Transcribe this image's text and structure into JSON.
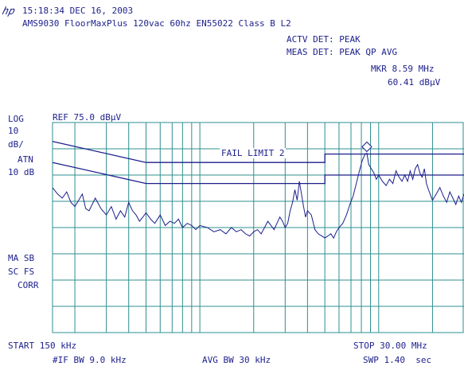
{
  "header": {
    "logo": "hp",
    "timestamp": "15:18:34 DEC 16, 2003",
    "description": "AMS9030 FloorMaxPlus 120vac 60hz EN55022 Class B L2"
  },
  "detectors": {
    "actv_det": "ACTV DET: PEAK",
    "meas_det": "MEAS DET: PEAK QP AVG"
  },
  "marker": {
    "freq": "MKR 8.59 MHz",
    "level": "60.41 dBμV"
  },
  "left_panel": {
    "scale_mode": "LOG",
    "scale_value": "10",
    "scale_unit": "dB/",
    "atn_label": "ATN",
    "atn_value": "10 dB",
    "ma_sb": "MA SB",
    "sc_fs": "SC FS",
    "corr": "CORR"
  },
  "footer": {
    "start": "START 150 kHz",
    "stop": "STOP 30.00 MHz",
    "if_bw": "#IF BW 9.0 kHz",
    "avg_bw": "AVG BW 30 kHz",
    "swp": "SWP 1.40  sec"
  },
  "colors": {
    "text": "#1c1f8c",
    "trace": "#1c1f8c",
    "grid": "#2f8f8f",
    "background": "#ffffff"
  },
  "chart_data": {
    "type": "line",
    "reference_level": "REF 75.0 dBμV",
    "annotation": "FAIL LIMIT 2",
    "ylim": [
      -25,
      75
    ],
    "y_unit": "dBμV",
    "x_start_mhz": 0.15,
    "x_stop_mhz": 30.0,
    "grid": true,
    "marker_point": {
      "x_mhz": 8.59,
      "y": 60.41
    },
    "series": [
      {
        "kind": "limit",
        "x": [
          0.15,
          0.5,
          5.0,
          5.0,
          30.0
        ],
        "values": [
          66.0,
          56.0,
          56.0,
          60.0,
          60.0
        ]
      },
      {
        "kind": "limit",
        "x": [
          0.15,
          0.5,
          5.0,
          5.0,
          30.0
        ],
        "values": [
          56.0,
          46.0,
          46.0,
          50.0,
          50.0
        ]
      },
      {
        "kind": "trace",
        "x": [
          0.15,
          0.16,
          0.17,
          0.18,
          0.19,
          0.2,
          0.21,
          0.22,
          0.23,
          0.24,
          0.25,
          0.26,
          0.28,
          0.3,
          0.32,
          0.34,
          0.36,
          0.38,
          0.4,
          0.42,
          0.44,
          0.46,
          0.48,
          0.5,
          0.53,
          0.56,
          0.6,
          0.64,
          0.68,
          0.72,
          0.76,
          0.8,
          0.85,
          0.9,
          0.95,
          1.0,
          1.1,
          1.2,
          1.3,
          1.4,
          1.5,
          1.6,
          1.7,
          1.8,
          1.9,
          2.0,
          2.1,
          2.2,
          2.3,
          2.4,
          2.5,
          2.6,
          2.7,
          2.8,
          2.9,
          3.0,
          3.1,
          3.2,
          3.3,
          3.4,
          3.5,
          3.6,
          3.7,
          3.8,
          3.9,
          4.0,
          4.2,
          4.4,
          4.6,
          4.8,
          5.0,
          5.2,
          5.4,
          5.6,
          5.8,
          6.0,
          6.3,
          6.6,
          6.9,
          7.2,
          7.5,
          7.8,
          8.1,
          8.4,
          8.59,
          8.8,
          9.1,
          9.4,
          9.7,
          10.0,
          10.5,
          11.0,
          11.5,
          12.0,
          12.5,
          13.0,
          13.5,
          14.0,
          14.5,
          15.0,
          15.5,
          16.0,
          16.5,
          17.0,
          17.5,
          18.0,
          18.5,
          19.0,
          20.0,
          21.0,
          22.0,
          23.0,
          24.0,
          25.0,
          26.0,
          27.0,
          28.0,
          29.0,
          30.0
        ],
        "values": [
          44,
          41,
          39,
          42,
          37,
          35,
          38,
          41,
          34,
          33,
          36,
          39,
          34,
          31,
          35,
          29,
          33,
          30,
          37,
          33,
          31,
          28,
          30,
          32,
          29,
          27,
          31,
          26,
          28,
          27,
          29,
          25,
          27,
          26,
          24,
          26,
          25,
          23,
          24,
          22,
          25,
          23,
          24,
          22,
          21,
          23,
          24,
          22,
          25,
          28,
          26,
          24,
          27,
          30,
          28,
          25,
          27,
          33,
          37,
          43,
          38,
          47,
          41,
          35,
          30,
          33,
          31,
          24,
          22,
          21,
          20,
          21,
          22,
          20,
          23,
          25,
          27,
          31,
          36,
          40,
          46,
          52,
          57,
          60,
          60.41,
          55,
          53,
          51,
          48,
          50,
          47,
          45,
          48,
          46,
          52,
          49,
          47,
          50,
          47,
          52,
          48,
          53,
          55,
          51,
          49,
          53,
          46,
          43,
          38,
          41,
          44,
          40,
          37,
          42,
          39,
          36,
          40,
          37,
          41
        ]
      }
    ]
  }
}
